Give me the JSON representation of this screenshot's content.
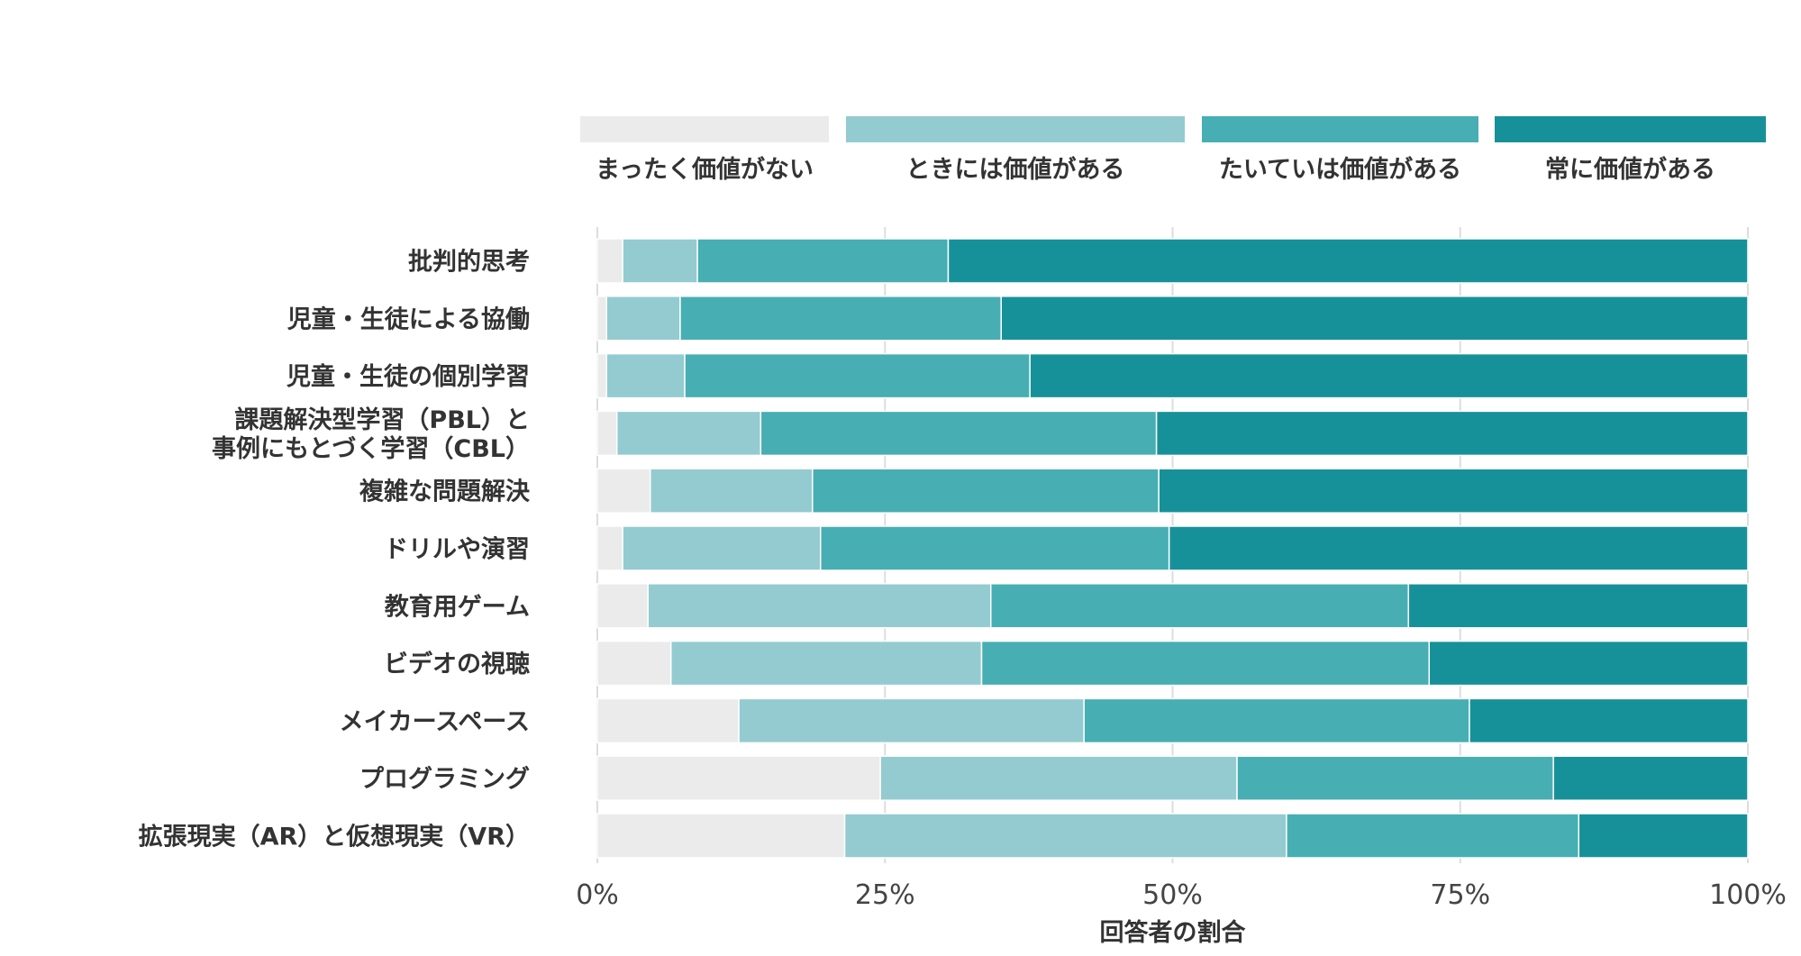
{
  "chart_data": {
    "type": "bar",
    "orientation": "horizontal",
    "stacked": true,
    "normalized": true,
    "title": "",
    "xlabel": "回答者の割合",
    "ylabel": "",
    "xlim": [
      0,
      100
    ],
    "x_ticks": [
      "0%",
      "25%",
      "50%",
      "75%",
      "100%"
    ],
    "grid": true,
    "legend_position": "top",
    "categories": [
      "批判的思考",
      "児童・生徒による協働",
      "児童・生徒の個別学習",
      "課題解決型学習（PBL）と\n事例にもとづく学習（CBL）",
      "複雑な問題解決",
      "ドリルや演習",
      "教育用ゲーム",
      "ビデオの視聴",
      "メイカースペース",
      "プログラミング",
      "拡張現実（AR）と仮想現実（VR）"
    ],
    "series": [
      {
        "name": "まったく価値がない",
        "color": "#ebebeb",
        "values": [
          2.2,
          0.8,
          0.8,
          1.7,
          4.6,
          2.2,
          4.4,
          6.4,
          12.3,
          24.6,
          21.5
        ]
      },
      {
        "name": "ときには価値がある",
        "color": "#93cbd0",
        "values": [
          6.5,
          6.4,
          6.8,
          12.5,
          14.1,
          17.2,
          29.8,
          27.0,
          30.0,
          31.0,
          38.4
        ]
      },
      {
        "name": "たいていは価値がある",
        "color": "#47aeb3",
        "values": [
          21.8,
          27.9,
          30.0,
          34.4,
          30.1,
          30.3,
          36.3,
          38.9,
          33.5,
          27.5,
          25.4
        ]
      },
      {
        "name": "常に価値がある",
        "color": "#169199",
        "values": [
          69.5,
          64.9,
          62.4,
          51.4,
          51.2,
          50.3,
          29.5,
          27.7,
          24.2,
          16.9,
          14.7
        ]
      }
    ]
  }
}
